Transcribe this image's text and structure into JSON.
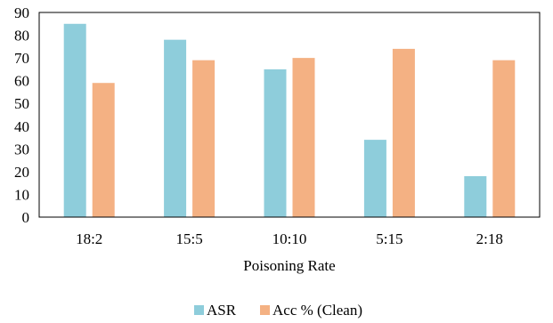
{
  "chart_data": {
    "type": "bar",
    "categories": [
      "18:2",
      "15:5",
      "10:10",
      "5:15",
      "2:18"
    ],
    "series": [
      {
        "name": "ASR",
        "values": [
          85,
          78,
          65,
          34,
          18
        ],
        "color": "#8ECDDB"
      },
      {
        "name": "Acc % (Clean)",
        "values": [
          59,
          69,
          70,
          74,
          69
        ],
        "color": "#F4B183"
      }
    ],
    "xlabel": "Poisoning Rate",
    "ylabel": "",
    "ylim": [
      0,
      90
    ],
    "yticks": [
      "0",
      "10",
      "20",
      "30",
      "40",
      "50",
      "60",
      "70",
      "80",
      "90"
    ],
    "grid": false,
    "legend_position": "bottom"
  }
}
